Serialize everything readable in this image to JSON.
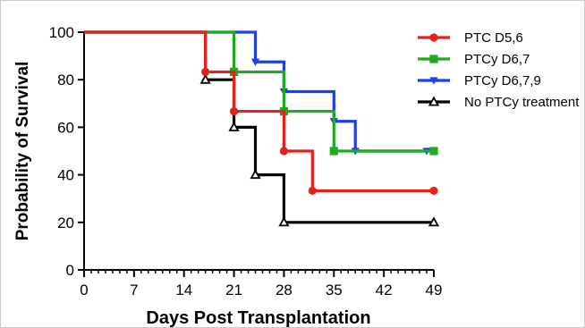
{
  "chart_data": {
    "type": "line",
    "step": true,
    "xlabel": "Days Post Transplantation",
    "ylabel": "Probability of Survival",
    "xlim": [
      0,
      49
    ],
    "ylim": [
      0,
      100
    ],
    "xticks": [
      0,
      7,
      14,
      21,
      28,
      35,
      42,
      49
    ],
    "xtick_labels": [
      "0",
      "7",
      "14",
      "21",
      "28",
      "35",
      "42",
      "49"
    ],
    "yticks": [
      0,
      20,
      40,
      60,
      80,
      100
    ],
    "ytick_labels": [
      "0",
      "20",
      "40",
      "60",
      "80",
      "100"
    ],
    "x_minor_step": 1,
    "grid": false,
    "legend_position": "top-right",
    "series": [
      {
        "name": "PTC D5,6",
        "color": "#e8201c",
        "marker": "circle",
        "steps": [
          [
            0,
            100
          ],
          [
            17,
            83.3
          ],
          [
            21,
            66.7
          ],
          [
            28,
            50
          ],
          [
            32,
            33.3
          ],
          [
            49,
            33.3
          ]
        ],
        "markers": [
          [
            17,
            83.3
          ],
          [
            21,
            66.7
          ],
          [
            28,
            50
          ],
          [
            32,
            33.3
          ],
          [
            49,
            33.3
          ]
        ]
      },
      {
        "name": "PTCy D6,7",
        "color": "#1faa1f",
        "marker": "square",
        "steps": [
          [
            0,
            100
          ],
          [
            21,
            83.3
          ],
          [
            28,
            66.7
          ],
          [
            35,
            50
          ],
          [
            49,
            50
          ]
        ],
        "markers": [
          [
            21,
            83.3
          ],
          [
            28,
            66.7
          ],
          [
            35,
            50
          ],
          [
            49,
            50
          ]
        ]
      },
      {
        "name": "PTCy D6,7,9",
        "color": "#1f3ee8",
        "marker": "triangle-down",
        "steps": [
          [
            0,
            100
          ],
          [
            24,
            87.5
          ],
          [
            28,
            75
          ],
          [
            35,
            62.5
          ],
          [
            38,
            50
          ],
          [
            49,
            50
          ]
        ],
        "markers": [
          [
            24,
            87.5
          ],
          [
            28,
            75
          ],
          [
            35,
            62.5
          ],
          [
            38,
            50
          ],
          [
            48,
            50
          ]
        ]
      },
      {
        "name": "No PTCy treatment",
        "color": "#000000",
        "marker": "triangle-up",
        "steps": [
          [
            0,
            100
          ],
          [
            17,
            80
          ],
          [
            21,
            60
          ],
          [
            24,
            40
          ],
          [
            28,
            20
          ],
          [
            49,
            20
          ]
        ],
        "markers": [
          [
            17,
            80
          ],
          [
            21,
            60
          ],
          [
            24,
            40
          ],
          [
            28,
            20
          ],
          [
            49,
            20
          ]
        ]
      }
    ]
  }
}
